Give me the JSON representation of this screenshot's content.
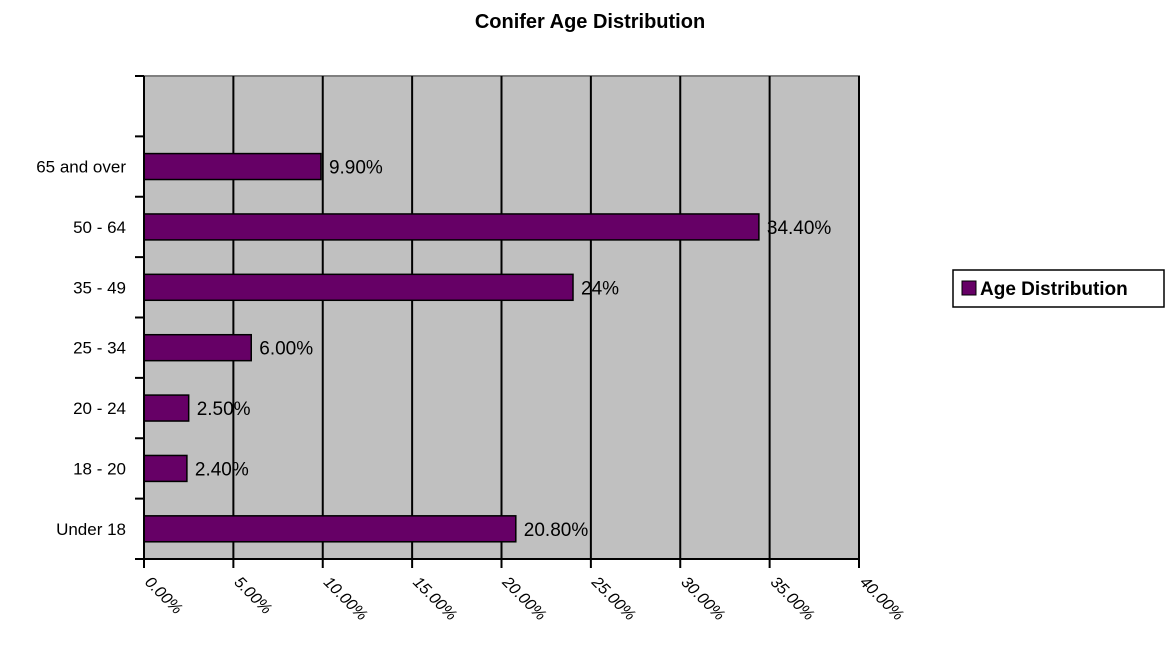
{
  "chart_data": {
    "type": "bar",
    "orientation": "horizontal",
    "title": "Conifer Age Distribution",
    "categories": [
      "Under 18",
      "18 - 20",
      "20 - 24",
      "25 - 34",
      "35 - 49",
      "50 - 64",
      "65 and over"
    ],
    "series": [
      {
        "name": "Age Distribution",
        "values": [
          20.8,
          2.4,
          2.5,
          6.0,
          24.0,
          34.4,
          9.9
        ],
        "data_labels": [
          "20.80%",
          "2.40%",
          "2.50%",
          "6.00%",
          "24%",
          "34.40%",
          "9.90%"
        ],
        "color": "#660066"
      }
    ],
    "xlim": [
      0,
      40
    ],
    "x_ticks": [
      0,
      5,
      10,
      15,
      20,
      25,
      30,
      35,
      40
    ],
    "x_tick_labels": [
      "0.00%",
      "5.00%",
      "10.00%",
      "15.00%",
      "20.00%",
      "25.00%",
      "30.00%",
      "35.00%",
      "40.00%"
    ],
    "category_slots": 7,
    "grid": "vertical",
    "plot_background": "#c0c0c0",
    "legend_position": "right"
  }
}
